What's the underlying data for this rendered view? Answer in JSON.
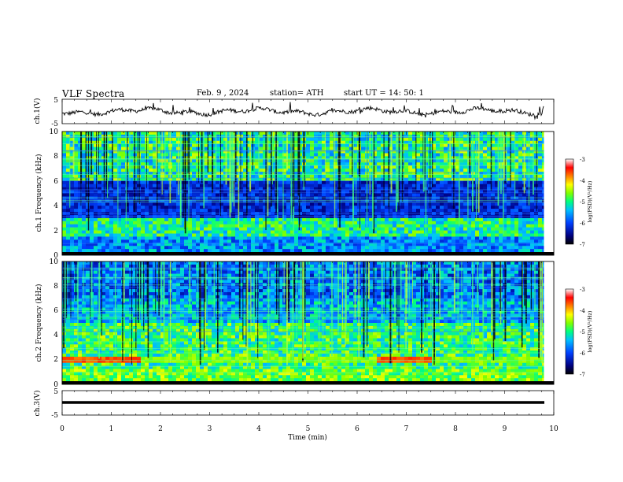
{
  "header": {
    "title": "VLF Spectra",
    "date": "Feb. 9 , 2024",
    "station": "station= ATH",
    "start_ut": "start UT =  14: 50: 1"
  },
  "panels": {
    "ch1_waveform": {
      "ylabel": "ch.1(V)",
      "yticks": [
        "5",
        "-5"
      ]
    },
    "ch1_spectrogram": {
      "ylabel": "ch.1 Frequency (kHz)",
      "yticks": [
        "0",
        "2",
        "4",
        "6",
        "8",
        "10"
      ]
    },
    "ch2_spectrogram": {
      "ylabel": "ch.2 Frequency (kHz)",
      "yticks": [
        "0",
        "2",
        "4",
        "6",
        "8",
        "10"
      ]
    },
    "ch3_waveform": {
      "ylabel": "ch.3(V)",
      "yticks": [
        "5",
        "-5"
      ]
    }
  },
  "colorbar": {
    "label": "log(PSD)(V²/Hz)",
    "ticks": [
      "-3",
      "-4",
      "-5",
      "-6",
      "-7"
    ],
    "colors": [
      "#000080",
      "#0040ff",
      "#00c0ff",
      "#00ff80",
      "#80ff00",
      "#ffff00",
      "#ff8000",
      "#ff0000",
      "#ffffff"
    ]
  },
  "chart_data": {
    "type": "heatmap",
    "xlabel": "Time (min)",
    "xticks": [
      "0",
      "1",
      "2",
      "3",
      "4",
      "5",
      "6",
      "7",
      "8",
      "9",
      "10"
    ],
    "xlim": [
      0,
      10
    ],
    "data_end_min": 9.8,
    "ch1_waveform_ylim": [
      -5,
      5
    ],
    "ch3_waveform_ylim": [
      -5,
      5
    ],
    "freq_ylim_khz": [
      0,
      10
    ],
    "colorbar_range_log_psd": [
      -7,
      -3
    ],
    "ch2_hum_band": {
      "freq_khz": 2.0,
      "intervals_min": [
        [
          0.0,
          1.55
        ],
        [
          6.4,
          7.45
        ]
      ]
    }
  }
}
